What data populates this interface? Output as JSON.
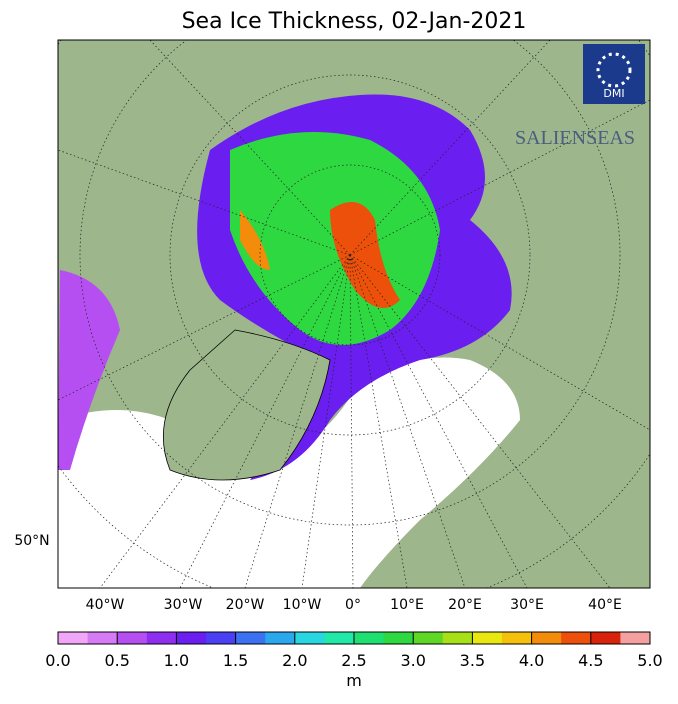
{
  "title": "Sea Ice Thickness, 02-Jan-2021",
  "map": {
    "lat_labels": [
      "50°N"
    ],
    "lon_labels": [
      "40°W",
      "30°W",
      "20°W",
      "10°W",
      "0°",
      "10°E",
      "20°E",
      "30°E",
      "40°E"
    ]
  },
  "logos": {
    "dmi": "DMI",
    "project": "SALIENSEAS"
  },
  "colorbar": {
    "range": [
      0,
      5
    ],
    "ticks": [
      {
        "value": 0,
        "label": "0.0"
      },
      0.5,
      {
        "value": 1,
        "label": "1.0"
      },
      1.5,
      {
        "value": 2,
        "label": "2.0"
      },
      2.5,
      {
        "value": 3,
        "label": "3.0"
      },
      3.5,
      {
        "value": 4,
        "label": "4.0"
      },
      4.5,
      {
        "value": 5,
        "label": "5.0"
      }
    ],
    "unit": "m",
    "colors": [
      "#f2a6f7",
      "#d77af5",
      "#b64ff2",
      "#8f2ef0",
      "#6a1ef0",
      "#4a3ff2",
      "#3a72f2",
      "#2aa8ee",
      "#27d6e0",
      "#22e8a8",
      "#1ee070",
      "#2ed840",
      "#5fd825",
      "#a8e018",
      "#e8e810",
      "#f5c00c",
      "#f28c0a",
      "#ec500a",
      "#d8220c",
      "#f5a0a0"
    ]
  }
}
